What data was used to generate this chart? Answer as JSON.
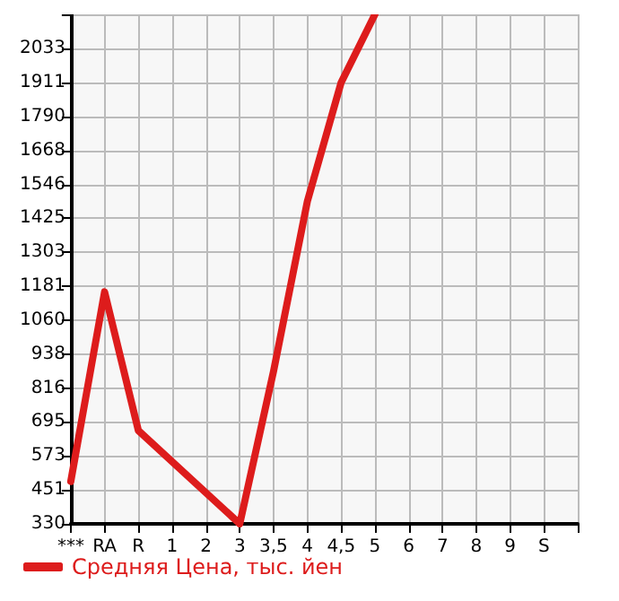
{
  "chart_data": {
    "type": "line",
    "categories": [
      "***",
      "RA",
      "R",
      "1",
      "2",
      "3",
      "3,5",
      "4",
      "4,5",
      "5",
      "6",
      "7",
      "8",
      "9",
      "S",
      null
    ],
    "series": [
      {
        "name": "Средняя Цена, тыс. йен",
        "color": "#dd1c1c",
        "values": [
          482,
          1161,
          664,
          null,
          null,
          330,
          877,
          1485,
          1911,
          2155,
          null,
          null,
          null,
          null,
          null,
          null
        ]
      }
    ],
    "ylim": [
      330,
      2155
    ],
    "yticks": [
      330,
      451,
      573,
      695,
      816,
      938,
      1060,
      1181,
      1303,
      1425,
      1546,
      1668,
      1790,
      1911,
      2033,
      {
        "value": 2155,
        "label": null
      }
    ],
    "grid": true,
    "legend": "bottom left",
    "marker": "none",
    "line_style": "solid"
  }
}
